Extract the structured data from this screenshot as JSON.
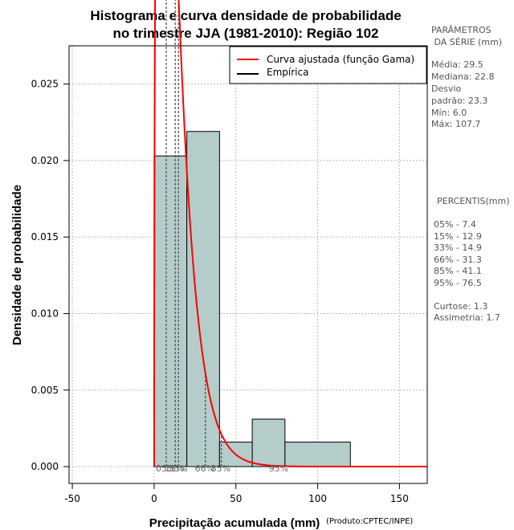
{
  "chart_data": {
    "type": "histogram",
    "title_line1": "Histograma e curva densidade de probabilidade",
    "title_line2": "no trimestre JJA (1981-2010): Região 102",
    "xlabel": "Precipitação acumulada (mm)",
    "ylabel": "Densidade de probabilidade",
    "credit": "(Produto:CPTEC/INPE)",
    "xlim": [
      -52,
      167
    ],
    "ylim": [
      -0.0011,
      0.0275
    ],
    "x_ticks": [
      -50,
      0,
      50,
      100,
      150
    ],
    "y_ticks": [
      0.0,
      0.005,
      0.01,
      0.015,
      0.02,
      0.025
    ],
    "y_tick_labels": [
      "0.000",
      "0.005",
      "0.010",
      "0.015",
      "0.020",
      "0.025"
    ],
    "bins": [
      {
        "from": 0,
        "to": 20,
        "density": 0.0203
      },
      {
        "from": 20,
        "to": 40,
        "density": 0.0219
      },
      {
        "from": 40,
        "to": 60,
        "density": 0.0016
      },
      {
        "from": 60,
        "to": 80,
        "density": 0.0031
      },
      {
        "from": 80,
        "to": 120,
        "density": 0.0016
      }
    ],
    "gamma_fit": {
      "shape": 1.55,
      "scale": 8.1,
      "x_end": 167
    },
    "percentile_lines": [
      {
        "label": "05%",
        "value": 7.4
      },
      {
        "label": "15%",
        "value": 12.9
      },
      {
        "label": "33%",
        "value": 14.9
      },
      {
        "label": "66%",
        "value": 31.3
      },
      {
        "label": "85%",
        "value": 41.1
      },
      {
        "label": "95%",
        "value": 76.5
      }
    ],
    "legend": [
      {
        "label": "Curva ajustada (função Gama)",
        "color": "#ff0000"
      },
      {
        "label": "Empírica",
        "color": "#000000"
      }
    ],
    "colors": {
      "bar_fill": "#b4cdcb",
      "curve": "#ff0000",
      "grid": "#bbbbbb"
    }
  },
  "side_panel": {
    "params_header": [
      "PARÂMETROS",
      " DA SÉRIE (mm)"
    ],
    "params": [
      "Média:  29.5",
      "Mediana:  22.8",
      "Desvio",
      "padrão:  23.3",
      "Mín:  6.0",
      "Máx:  107.7"
    ],
    "percentis_header": "PERCENTIS(mm)",
    "percentis": [
      "05% -  7.4",
      "15% -  12.9",
      "33% -  14.9",
      "66% -  31.3",
      "85% -  41.1",
      "95% -  76.5"
    ],
    "extra": [
      "Curtose:  1.3",
      "Assimetria:  1.7"
    ]
  }
}
